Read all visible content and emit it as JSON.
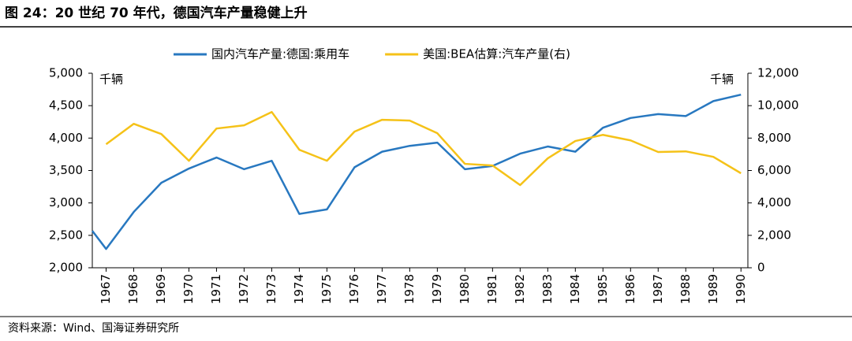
{
  "chart_data": {
    "type": "line",
    "title": "图 24：20 世纪 70 年代，德国汽车产量稳健上升",
    "y_unit": "千辆",
    "y2_unit": "千辆",
    "source": "资料来源：Wind、国海证券研究所",
    "x": [
      1966.5,
      1967,
      1968,
      1969,
      1970,
      1971,
      1972,
      1973,
      1974,
      1975,
      1976,
      1977,
      1978,
      1979,
      1980,
      1981,
      1982,
      1983,
      1984,
      1985,
      1986,
      1987,
      1988,
      1989,
      1990
    ],
    "xlim": [
      1966.5,
      1990.25
    ],
    "xticks": [
      1967,
      1968,
      1969,
      1970,
      1971,
      1972,
      1973,
      1974,
      1975,
      1976,
      1977,
      1978,
      1979,
      1980,
      1981,
      1982,
      1983,
      1984,
      1985,
      1986,
      1987,
      1988,
      1989,
      1990
    ],
    "ylim": [
      2000,
      5000
    ],
    "yticks": [
      {
        "value": 2000,
        "label": "2,000"
      },
      {
        "value": 2500,
        "label": "2,500"
      },
      {
        "value": 3000,
        "label": "3,000"
      },
      {
        "value": 3500,
        "label": "3,500"
      },
      {
        "value": 4000,
        "label": "4,000"
      },
      {
        "value": 4500,
        "label": "4,500"
      },
      {
        "value": 5000,
        "label": "5,000"
      }
    ],
    "y2lim": [
      0,
      12000
    ],
    "y2ticks": [
      0,
      {
        "value": 2000,
        "label": "2,000"
      },
      {
        "value": 4000,
        "label": "4,000"
      },
      {
        "value": 6000,
        "label": "6,000"
      },
      {
        "value": 8000,
        "label": "8,000"
      },
      {
        "value": 10000,
        "label": "10,000"
      },
      {
        "value": 12000,
        "label": "12,000"
      }
    ],
    "legend": "top",
    "series": [
      {
        "name": "国内汽车产量:德国:乘用车",
        "color": "#2878c0",
        "axis": "y",
        "values": [
          2570,
          2290,
          2860,
          3310,
          3530,
          3700,
          3520,
          3650,
          2830,
          2900,
          3550,
          3790,
          3880,
          3930,
          3520,
          3570,
          3760,
          3870,
          3790,
          4160,
          4310,
          4370,
          4340,
          4570,
          4670
        ]
      },
      {
        "name": "美国:BEA估算:汽车产量(右)",
        "color": "#f5c218",
        "axis": "y2",
        "values": [
          null,
          7620,
          8880,
          8250,
          6600,
          8590,
          8790,
          9610,
          7280,
          6600,
          8400,
          9130,
          9080,
          8300,
          6410,
          6310,
          5100,
          6750,
          7820,
          8200,
          7860,
          7140,
          7180,
          6840,
          5830
        ]
      }
    ]
  }
}
